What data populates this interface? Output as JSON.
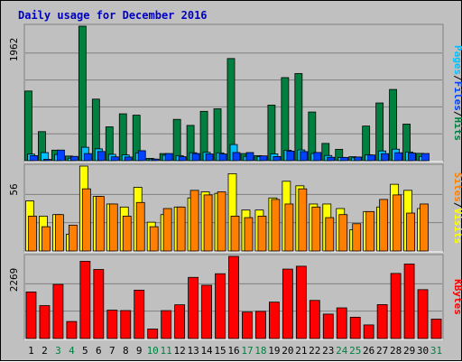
{
  "chart_data": {
    "type": "bar",
    "title": "Daily usage for December 2016",
    "categories": [
      "1",
      "2",
      "3",
      "4",
      "5",
      "6",
      "7",
      "8",
      "9",
      "10",
      "11",
      "12",
      "13",
      "14",
      "15",
      "16",
      "17",
      "18",
      "19",
      "20",
      "21",
      "22",
      "23",
      "24",
      "25",
      "26",
      "27",
      "28",
      "29",
      "30",
      "31"
    ],
    "weekend_days": [
      "3",
      "4",
      "10",
      "11",
      "17",
      "18",
      "24",
      "25",
      "31"
    ],
    "panels": [
      {
        "id": "hits",
        "ymax_label": "1962",
        "ymax": 1962,
        "legend": [
          "Pages",
          "/",
          "Files",
          "/",
          "Hits"
        ],
        "series": [
          {
            "name": "Hits",
            "color": "#008040",
            "values": [
              1016,
              424,
              154,
              68,
              1962,
              898,
              494,
              684,
              664,
              34,
              104,
              603,
              515,
              720,
              757,
              1490,
              104,
              74,
              811,
              1212,
              1271,
              710,
              252,
              166,
              58,
              505,
              842,
              1039,
              534,
              107,
              0
            ]
          },
          {
            "name": "Files",
            "color": "#00c0ff",
            "values": [
              96,
              118,
              90,
              36,
              196,
              173,
              93,
              84,
              114,
              24,
              80,
              74,
              116,
              122,
              114,
              236,
              64,
              58,
              100,
              152,
              157,
              105,
              76,
              48,
              42,
              84,
              142,
              168,
              127,
              61,
              0
            ]
          },
          {
            "name": "Pages",
            "color": "#0040ff",
            "values": [
              74,
              19,
              155,
              63,
              104,
              134,
              56,
              54,
              146,
              23,
              105,
              58,
              104,
              98,
              98,
              119,
              119,
              70,
              61,
              140,
              133,
              120,
              50,
              48,
              54,
              83,
              103,
              116,
              112,
              105,
              0
            ]
          }
        ]
      },
      {
        "id": "visits",
        "ymax_label": "56",
        "ymax": 56,
        "legend": [
          "Sites",
          "/",
          "Visits"
        ],
        "series": [
          {
            "name": "Visits",
            "color": "#ffff00",
            "values": [
              33,
              23,
              24,
              11,
              56,
              36,
              31,
              29,
              42,
              19,
              24,
              29,
              35,
              39,
              38,
              51,
              27,
              27,
              35,
              46,
              43,
              31,
              31,
              28,
              14,
              26,
              29,
              44,
              40,
              28,
              0
            ]
          },
          {
            "name": "Sites",
            "color": "#ff8000",
            "values": [
              23,
              16,
              24,
              17,
              41,
              36,
              31,
              23,
              32,
              16,
              28,
              29,
              40,
              37,
              39,
              23,
              22,
              23,
              34,
              31,
              41,
              29,
              22,
              24,
              18,
              26,
              34,
              37,
              25,
              31,
              0
            ]
          }
        ]
      },
      {
        "id": "kbytes",
        "ymax_label": "2269",
        "ymax": 2269,
        "legend": [
          "KBytes"
        ],
        "series": [
          {
            "name": "KBytes",
            "color": "#ff0000",
            "values": [
              1287,
              909,
              1495,
              471,
              2133,
              1907,
              784,
              773,
              1336,
              264,
              771,
              932,
              1689,
              1472,
              1790,
              2269,
              731,
              750,
              1006,
              1918,
              1997,
              1053,
              675,
              847,
              589,
              376,
              937,
              1798,
              2058,
              1350,
              536
            ]
          }
        ]
      }
    ]
  },
  "colors": {
    "background": "#c0c0c0",
    "title": "#0000c0",
    "weekday_tick": "#000000",
    "weekend_tick": "#008040",
    "gridline": "#808080"
  }
}
